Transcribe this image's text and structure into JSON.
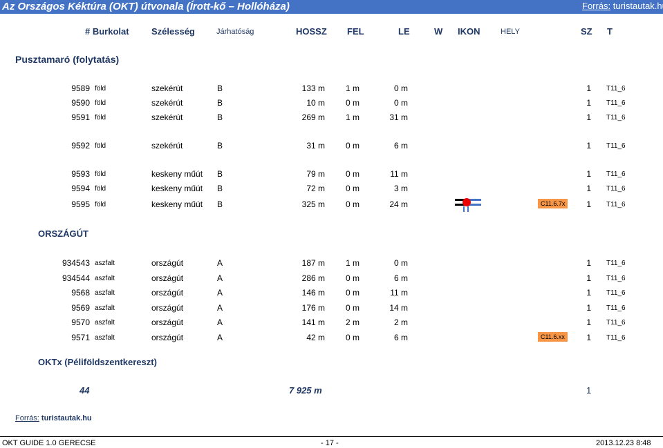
{
  "title": "Az Országos Kéktúra (OKT) útvonala (Írott-kő – Hollóháza)",
  "source_top": {
    "label": "Forrás:",
    "value": "turistautak.hu"
  },
  "columns": [
    "# Burkolat",
    "Szélesség",
    "Járhatóság",
    "HOSSZ",
    "FEL",
    "LE",
    "W",
    "IKON",
    "HELY",
    "SZ",
    "T"
  ],
  "section1": "Pusztamaró (folytatás)",
  "section2": "ORSZÁGÚT",
  "section3": "OKTx (Péliföldszentkereszt)",
  "rows1": [
    {
      "id": "9589",
      "surface": "föld",
      "type": "szekérút",
      "cls": "B",
      "len": "133 m",
      "up": "1 m",
      "down": "0 m",
      "hely": "",
      "sz": "1",
      "t": "T11_6"
    },
    {
      "id": "9590",
      "surface": "föld",
      "type": "szekérút",
      "cls": "B",
      "len": "10 m",
      "up": "0 m",
      "down": "0 m",
      "hely": "",
      "sz": "1",
      "t": "T11_6"
    },
    {
      "id": "9591",
      "surface": "föld",
      "type": "szekérút",
      "cls": "B",
      "len": "269 m",
      "up": "1 m",
      "down": "31 m",
      "hely": "",
      "sz": "1",
      "t": "T11_6"
    },
    {
      "id": "9592",
      "surface": "föld",
      "type": "szekérút",
      "cls": "B",
      "len": "31 m",
      "up": "0 m",
      "down": "6 m",
      "hely": "",
      "sz": "1",
      "t": "T11_6"
    },
    {
      "id": "9593",
      "surface": "föld",
      "type": "keskeny műút",
      "cls": "B",
      "len": "79 m",
      "up": "0 m",
      "down": "11 m",
      "hely": "",
      "sz": "1",
      "t": "T11_6"
    },
    {
      "id": "9594",
      "surface": "föld",
      "type": "keskeny műút",
      "cls": "B",
      "len": "72 m",
      "up": "0 m",
      "down": "3 m",
      "hely": "",
      "sz": "1",
      "t": "T11_6"
    },
    {
      "id": "9595",
      "surface": "föld",
      "type": "keskeny műút",
      "cls": "B",
      "len": "325 m",
      "up": "0 m",
      "down": "24 m",
      "hely": "C11.6.7x",
      "sz": "1",
      "t": "T11_6"
    }
  ],
  "rows2": [
    {
      "id": "934543",
      "surface": "aszfalt",
      "type": "országút",
      "cls": "A",
      "len": "187 m",
      "up": "1 m",
      "down": "0 m",
      "hely": "",
      "sz": "1",
      "t": "T11_6"
    },
    {
      "id": "934544",
      "surface": "aszfalt",
      "type": "országút",
      "cls": "A",
      "len": "286 m",
      "up": "0 m",
      "down": "6 m",
      "hely": "",
      "sz": "1",
      "t": "T11_6"
    },
    {
      "id": "9568",
      "surface": "aszfalt",
      "type": "országút",
      "cls": "A",
      "len": "146 m",
      "up": "0 m",
      "down": "11 m",
      "hely": "",
      "sz": "1",
      "t": "T11_6"
    },
    {
      "id": "9569",
      "surface": "aszfalt",
      "type": "országút",
      "cls": "A",
      "len": "176 m",
      "up": "0 m",
      "down": "14 m",
      "hely": "",
      "sz": "1",
      "t": "T11_6"
    },
    {
      "id": "9570",
      "surface": "aszfalt",
      "type": "országút",
      "cls": "A",
      "len": "141 m",
      "up": "2 m",
      "down": "2 m",
      "hely": "",
      "sz": "1",
      "t": "T11_6"
    },
    {
      "id": "9571",
      "surface": "aszfalt",
      "type": "országút",
      "cls": "A",
      "len": "42 m",
      "up": "0 m",
      "down": "6 m",
      "hely": "C11.6.xx",
      "sz": "1",
      "t": "T11_6"
    }
  ],
  "totals": {
    "count": "44",
    "length": "7 925 m",
    "sz": "1"
  },
  "source_bottom": {
    "label": "Forrás:",
    "value": "turistautak.hu"
  },
  "footer": {
    "left": "OKT GUIDE 1.0  GERECSE",
    "center": "- 17 -",
    "right": "2013.12.23  8:48"
  },
  "icon": "road-junction-marker-icon"
}
